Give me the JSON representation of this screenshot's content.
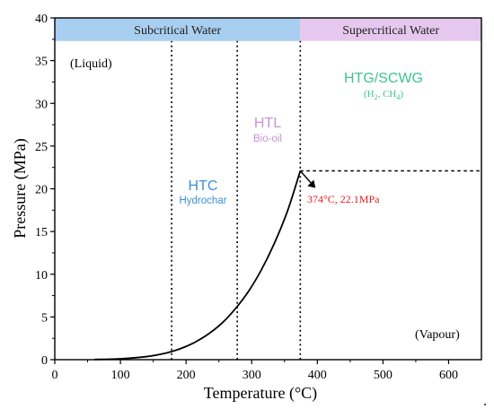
{
  "chart_data": {
    "type": "line",
    "xlabel": "Temperature (°C)",
    "ylabel": "Pressure (MPa)",
    "xlim": [
      0,
      650
    ],
    "ylim": [
      0,
      40
    ],
    "xticks": [
      0,
      100,
      200,
      300,
      400,
      500,
      600
    ],
    "yticks": [
      0,
      5,
      10,
      15,
      20,
      25,
      30,
      35,
      40
    ],
    "grid": false,
    "series": [
      {
        "x": [
          60,
          100,
          140,
          165,
          185,
          200,
          215,
          235,
          255,
          275,
          295,
          315,
          335,
          355,
          374
        ],
        "y": [
          0.02,
          0.1,
          0.36,
          0.7,
          1.12,
          1.55,
          2.1,
          3.06,
          4.3,
          5.95,
          7.98,
          10.55,
          13.7,
          17.5,
          22.1
        ],
        "color": "#000000"
      }
    ],
    "bands": [
      {
        "label": "Subcritical Water",
        "x_from": 0,
        "x_to": 374,
        "y_from": 37.3,
        "y_to": 40,
        "color": "#a9cff0"
      },
      {
        "label": "Supercritical Water",
        "x_from": 374,
        "x_to": 650,
        "y_from": 37.3,
        "y_to": 40,
        "color": "#e6c8ee"
      }
    ],
    "vlines": [
      {
        "x": 178,
        "y_to": 37.3
      },
      {
        "x": 278,
        "y_to": 37.3
      },
      {
        "x": 374,
        "y_to": 37.3
      }
    ],
    "hlines": [
      {
        "y": 22.1,
        "x_from": 374,
        "x_to": 650
      }
    ],
    "annotations": {
      "liquid": "(Liquid)",
      "vapour": "(Vapour)",
      "htc": "HTC",
      "htc_sub": "Hydrochar",
      "htl": "HTL",
      "htl_sub": "Bio-oil",
      "htg": "HTG/SCWG",
      "htg_sub_parts": [
        "(H",
        "2",
        ", CH",
        "4",
        ")"
      ],
      "critical": "374°C, 22.1MPa"
    },
    "colors": {
      "htc": "#3c8fd3",
      "htl": "#c893d5",
      "htg": "#3ec48c",
      "critical": "#e61e1e",
      "band_text": "#222222"
    },
    "trailing_mark": "."
  }
}
